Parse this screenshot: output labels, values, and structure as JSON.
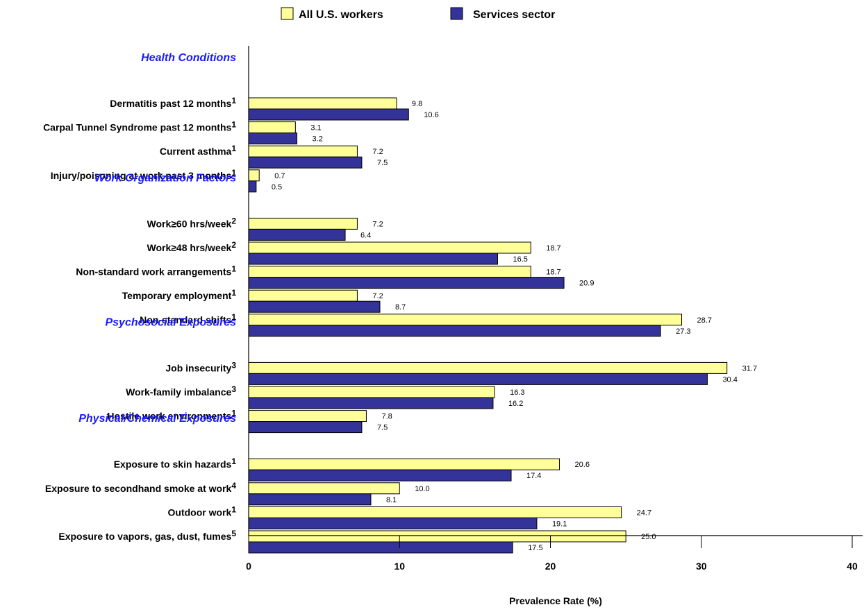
{
  "chart_data": {
    "type": "bar",
    "orientation": "horizontal",
    "xlabel": "Prevalence Rate (%)",
    "xlim": [
      0,
      40
    ],
    "xticks": [
      "0",
      "10",
      "20",
      "30",
      "40"
    ],
    "legend": {
      "placement": "top-center"
    },
    "series": [
      {
        "name": "All U.S. workers",
        "color": "#ffff99",
        "border": "#000000"
      },
      {
        "name": "Services sector",
        "color": "#333399",
        "border": "#000000"
      }
    ],
    "section_color": "#1a1aff",
    "rows": [
      {
        "kind": "section",
        "label": "Health Conditions"
      },
      {
        "kind": "category",
        "label": "Dermatitis past 12 months",
        "sup": "1",
        "values": [
          9.8,
          10.6
        ],
        "labels": [
          "9.8",
          "10.6"
        ]
      },
      {
        "kind": "category",
        "label": "Carpal Tunnel Syndrome past 12 months",
        "sup": "1",
        "values": [
          3.1,
          3.2
        ],
        "labels": [
          "3.1",
          "3.2"
        ]
      },
      {
        "kind": "category",
        "label": "Current asthma",
        "sup": "1",
        "values": [
          7.2,
          7.5
        ],
        "labels": [
          "7.2",
          "7.5"
        ]
      },
      {
        "kind": "category",
        "label": "Injury/poisoning at work past 3 months",
        "sup": "1",
        "values": [
          0.7,
          0.5
        ],
        "labels": [
          "0.7",
          "0.5"
        ]
      },
      {
        "kind": "section",
        "label": "Work Organization Factors"
      },
      {
        "kind": "category",
        "label": "Work≥60 hrs/week",
        "sup": "2",
        "values": [
          7.2,
          6.4
        ],
        "labels": [
          "7.2",
          "6.4"
        ]
      },
      {
        "kind": "category",
        "label": "Work≥48 hrs/week",
        "sup": "2",
        "values": [
          18.7,
          16.5
        ],
        "labels": [
          "18.7",
          "16.5"
        ]
      },
      {
        "kind": "category",
        "label": "Non-standard work arrangements",
        "sup": "1",
        "values": [
          18.7,
          20.9
        ],
        "labels": [
          "18.7",
          "20.9"
        ]
      },
      {
        "kind": "category",
        "label": "Temporary employment",
        "sup": "1",
        "values": [
          7.2,
          8.7
        ],
        "labels": [
          "7.2",
          "8.7"
        ]
      },
      {
        "kind": "category",
        "label": "Non-standard shifts",
        "sup": "1",
        "values": [
          28.7,
          27.3
        ],
        "labels": [
          "28.7",
          "27.3"
        ]
      },
      {
        "kind": "section",
        "label": "Psychosocial Exposures"
      },
      {
        "kind": "category",
        "label": "Job insecurity",
        "sup": "3",
        "values": [
          31.7,
          30.4
        ],
        "labels": [
          "31.7",
          "30.4"
        ]
      },
      {
        "kind": "category",
        "label": "Work-family imbalance",
        "sup": "3",
        "values": [
          16.3,
          16.2
        ],
        "labels": [
          "16.3",
          "16.2"
        ]
      },
      {
        "kind": "category",
        "label": "Hostile work environments",
        "sup": "1",
        "values": [
          7.8,
          7.5
        ],
        "labels": [
          "7.8",
          "7.5"
        ]
      },
      {
        "kind": "section",
        "label": "Physical/Chemical Exposures"
      },
      {
        "kind": "category",
        "label": "Exposure to skin hazards",
        "sup": "1",
        "values": [
          20.6,
          17.4
        ],
        "labels": [
          "20.6",
          "17.4"
        ]
      },
      {
        "kind": "category",
        "label": "Exposure to secondhand smoke at work",
        "sup": "4",
        "values": [
          10.0,
          8.1
        ],
        "labels": [
          "10.0",
          "8.1"
        ]
      },
      {
        "kind": "category",
        "label": "Outdoor work",
        "sup": "1",
        "values": [
          24.7,
          19.1
        ],
        "labels": [
          "24.7",
          "19.1"
        ]
      },
      {
        "kind": "category",
        "label": "Exposure to vapors, gas, dust, fumes",
        "sup": "5",
        "values": [
          25.0,
          17.5
        ],
        "labels": [
          "25.0",
          "17.5"
        ]
      }
    ]
  }
}
